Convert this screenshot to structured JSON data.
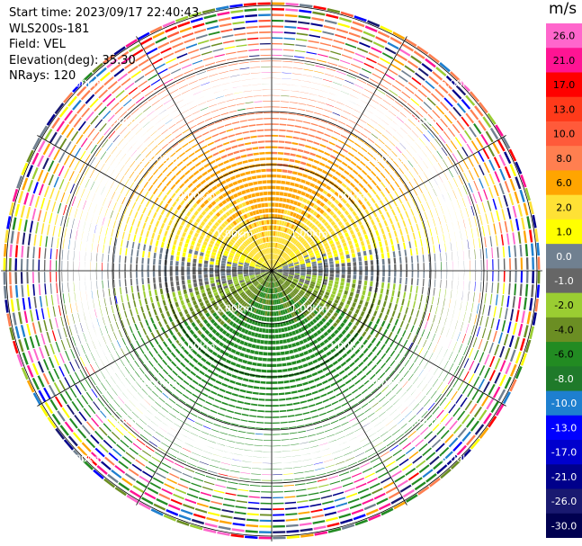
{
  "info": {
    "start_time": "Start time: 2023/09/17 22:40:43",
    "instrument": "WLS200s-181",
    "field": "Field: VEL",
    "elevation": "Elevation(deg): 35.30",
    "nrays": "NRays: 120"
  },
  "colorbar": {
    "unit": "m/s",
    "ticks": [
      "26.0",
      "21.0",
      "17.0",
      "13.0",
      "10.0",
      "8.0",
      "6.0",
      "2.0",
      "1.0",
      "0.0",
      "-1.0",
      "-2.0",
      "-4.0",
      "-6.0",
      "-8.0",
      "-10.0",
      "-13.0",
      "-17.0",
      "-21.0",
      "-26.0",
      "-30.0"
    ],
    "colors": [
      "#ff66cc",
      "#ff1493",
      "#ff0000",
      "#ff3a1a",
      "#ff5a3a",
      "#ff7f50",
      "#ffa500",
      "#ffe135",
      "#ffff00",
      "#708090",
      "#666666",
      "#9acd32",
      "#6b8e23",
      "#228b22",
      "#1f7a2a",
      "#1e7fcf",
      "#0000ff",
      "#0000cd",
      "#00008b",
      "#191970",
      "#000050"
    ]
  },
  "chart_data": {
    "type": "ppi",
    "title": "",
    "field": "VEL",
    "unit": "m/s",
    "range_ring_labels": [
      "1.00km",
      "2.00km",
      "3.00km",
      "4.00km",
      "5.00km"
    ],
    "range_rings_km": [
      1,
      2,
      3,
      4,
      5
    ],
    "max_range_km": 5.1,
    "nrays": 120,
    "azimuth_lines_deg": [
      0,
      30,
      60,
      90,
      120,
      150,
      180,
      210,
      240,
      270,
      300,
      330
    ]
  }
}
